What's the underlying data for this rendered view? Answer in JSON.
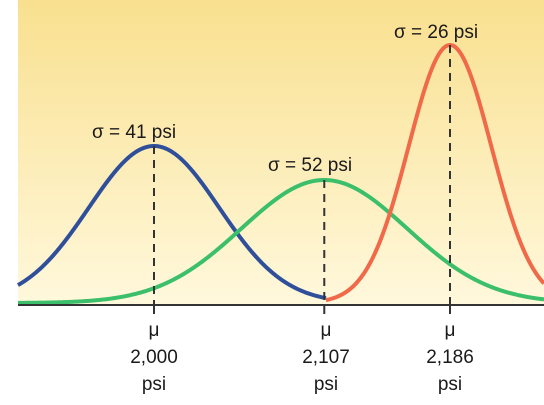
{
  "chart_data": {
    "type": "line",
    "title": "",
    "xlabel": "",
    "ylabel": "",
    "series": [
      {
        "color": "#2f4f9a",
        "mean": 2000,
        "sd": 41,
        "label": "σ = 41 psi"
      },
      {
        "color": "#3cbf6b",
        "mean": 2107,
        "sd": 52,
        "label": "σ = 52 psi"
      },
      {
        "color": "#f06a4a",
        "mean": 2186,
        "sd": 26,
        "label": "σ = 26 psi"
      }
    ],
    "ticks": [
      {
        "mu": "μ",
        "value": "2,000",
        "unit": "psi"
      },
      {
        "mu": "μ",
        "value": "2,107",
        "unit": "psi"
      },
      {
        "mu": "μ",
        "value": "2,186",
        "unit": "psi"
      }
    ],
    "grid": false,
    "legend": "none"
  },
  "colors": {
    "bg_top": "#f9e08f",
    "bg_bottom": "#fff8dc",
    "axis": "#333333",
    "dash": "#333333"
  }
}
